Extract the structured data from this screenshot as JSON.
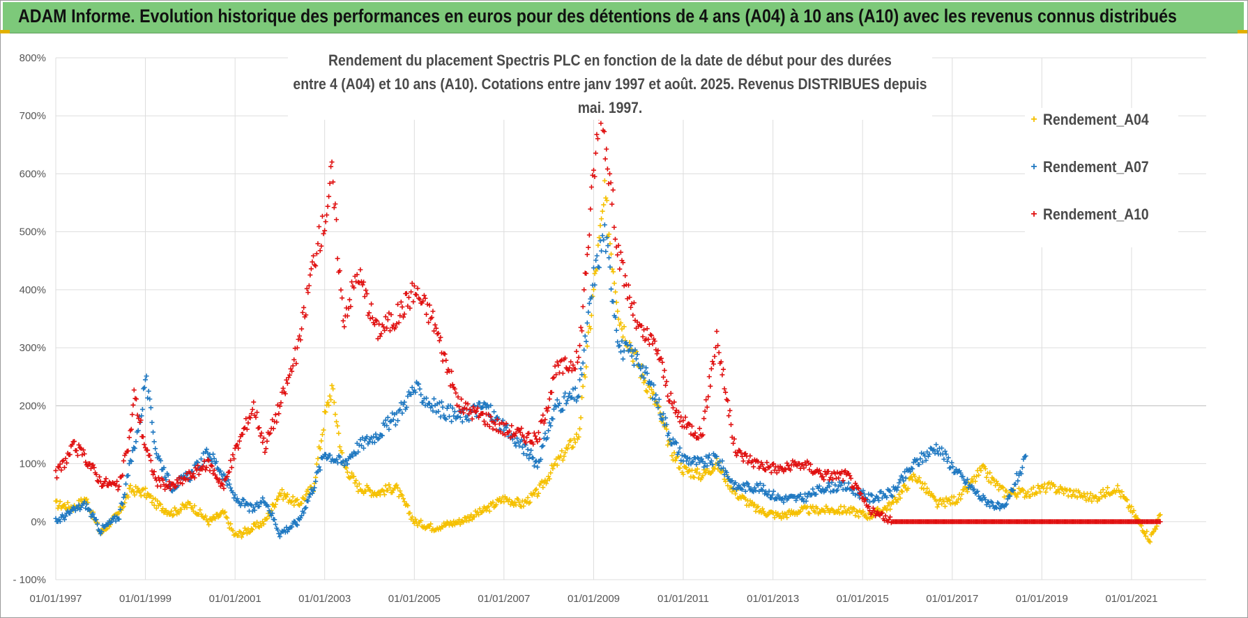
{
  "header": {
    "title": "ADAM Informe. Evolution historique des performances en euros pour des détentions de 4 ans (A04) à 10 ans (A10) avec les revenus connus distribués"
  },
  "chart_data": {
    "type": "scatter",
    "title_line1": "Rendement du placement Spectris PLC en fonction de la date de début pour des durées",
    "title_line2": "entre 4 (A04) et 10 ans (A10). Cotations entre janv 1997 et août. 2025. Revenus DISTRIBUES depuis mai. 1997.",
    "xlabel": "",
    "ylabel": "",
    "x_range": [
      "1997-01-01",
      "2022-01-01"
    ],
    "ylim": [
      -100,
      800
    ],
    "y_ticks": [
      -100,
      0,
      100,
      200,
      300,
      400,
      500,
      600,
      700,
      800
    ],
    "y_tick_labels": [
      "- 100%",
      "0%",
      "100%",
      "200%",
      "300%",
      "400%",
      "500%",
      "600%",
      "700%",
      "800%"
    ],
    "x_tick_labels": [
      "01/01/1997",
      "01/01/1999",
      "01/01/2001",
      "01/01/2003",
      "01/01/2005",
      "01/01/2007",
      "01/01/2009",
      "01/01/2011",
      "01/01/2013",
      "01/01/2015",
      "01/01/2017",
      "01/01/2019",
      "01/01/2021"
    ],
    "grid": true,
    "legend_position": "top-right",
    "marker": "+",
    "series": [
      {
        "name": "Rendement_A04",
        "color": "#f5c000",
        "points": [
          [
            "1997-01-01",
            30
          ],
          [
            "1997-06-01",
            25
          ],
          [
            "1997-09-01",
            40
          ],
          [
            "1998-01-01",
            -20
          ],
          [
            "1998-06-01",
            15
          ],
          [
            "1998-09-01",
            55
          ],
          [
            "1999-01-01",
            50
          ],
          [
            "1999-04-01",
            30
          ],
          [
            "1999-08-01",
            15
          ],
          [
            "2000-01-01",
            30
          ],
          [
            "2000-06-01",
            0
          ],
          [
            "2000-10-01",
            15
          ],
          [
            "2001-01-01",
            -25
          ],
          [
            "2001-06-01",
            -10
          ],
          [
            "2001-09-01",
            0
          ],
          [
            "2002-01-01",
            50
          ],
          [
            "2002-06-01",
            30
          ],
          [
            "2002-10-01",
            60
          ],
          [
            "2003-01-01",
            180
          ],
          [
            "2003-03-01",
            230
          ],
          [
            "2003-06-01",
            100
          ],
          [
            "2003-10-01",
            60
          ],
          [
            "2004-03-01",
            50
          ],
          [
            "2004-08-01",
            60
          ],
          [
            "2005-01-01",
            0
          ],
          [
            "2005-06-01",
            -10
          ],
          [
            "2006-01-01",
            0
          ],
          [
            "2006-08-01",
            20
          ],
          [
            "2007-01-01",
            40
          ],
          [
            "2007-06-01",
            30
          ],
          [
            "2007-10-01",
            50
          ],
          [
            "2008-03-01",
            100
          ],
          [
            "2008-09-01",
            150
          ],
          [
            "2009-01-01",
            400
          ],
          [
            "2009-04-01",
            560
          ],
          [
            "2009-08-01",
            350
          ],
          [
            "2010-01-01",
            270
          ],
          [
            "2010-06-01",
            200
          ],
          [
            "2010-10-01",
            120
          ],
          [
            "2011-01-01",
            90
          ],
          [
            "2011-06-01",
            80
          ],
          [
            "2011-10-01",
            100
          ],
          [
            "2012-03-01",
            50
          ],
          [
            "2012-09-01",
            20
          ],
          [
            "2013-03-01",
            10
          ],
          [
            "2013-09-01",
            20
          ],
          [
            "2014-03-01",
            20
          ],
          [
            "2014-09-01",
            20
          ],
          [
            "2015-03-01",
            10
          ],
          [
            "2015-09-01",
            30
          ],
          [
            "2016-03-01",
            80
          ],
          [
            "2016-09-01",
            30
          ],
          [
            "2017-03-01",
            40
          ],
          [
            "2017-09-01",
            90
          ],
          [
            "2018-03-01",
            50
          ],
          [
            "2018-09-01",
            50
          ],
          [
            "2019-03-01",
            60
          ],
          [
            "2019-09-01",
            50
          ],
          [
            "2020-03-01",
            40
          ],
          [
            "2020-09-01",
            60
          ],
          [
            "2021-01-01",
            20
          ],
          [
            "2021-06-01",
            -30
          ],
          [
            "2021-09-01",
            15
          ]
        ]
      },
      {
        "name": "Rendement_A07",
        "color": "#1f78c1",
        "points": [
          [
            "1997-01-01",
            0
          ],
          [
            "1997-06-01",
            20
          ],
          [
            "1997-09-01",
            30
          ],
          [
            "1998-01-01",
            -15
          ],
          [
            "1998-06-01",
            10
          ],
          [
            "1998-09-01",
            100
          ],
          [
            "1998-12-01",
            190
          ],
          [
            "1999-01-01",
            250
          ],
          [
            "1999-04-01",
            120
          ],
          [
            "1999-08-01",
            60
          ],
          [
            "2000-01-01",
            80
          ],
          [
            "2000-06-01",
            120
          ],
          [
            "2000-10-01",
            80
          ],
          [
            "2001-01-01",
            40
          ],
          [
            "2001-06-01",
            20
          ],
          [
            "2001-09-01",
            40
          ],
          [
            "2002-01-01",
            -20
          ],
          [
            "2002-06-01",
            0
          ],
          [
            "2002-10-01",
            60
          ],
          [
            "2003-01-01",
            120
          ],
          [
            "2003-06-01",
            100
          ],
          [
            "2003-10-01",
            130
          ],
          [
            "2004-03-01",
            150
          ],
          [
            "2004-08-01",
            180
          ],
          [
            "2005-01-01",
            230
          ],
          [
            "2005-06-01",
            200
          ],
          [
            "2006-01-01",
            180
          ],
          [
            "2006-08-01",
            200
          ],
          [
            "2007-01-01",
            160
          ],
          [
            "2007-06-01",
            130
          ],
          [
            "2007-10-01",
            100
          ],
          [
            "2008-03-01",
            200
          ],
          [
            "2008-09-01",
            220
          ],
          [
            "2009-01-01",
            420
          ],
          [
            "2009-04-01",
            500
          ],
          [
            "2009-08-01",
            300
          ],
          [
            "2010-01-01",
            280
          ],
          [
            "2010-06-01",
            210
          ],
          [
            "2010-10-01",
            140
          ],
          [
            "2011-01-01",
            110
          ],
          [
            "2011-06-01",
            100
          ],
          [
            "2011-10-01",
            110
          ],
          [
            "2012-03-01",
            60
          ],
          [
            "2012-09-01",
            60
          ],
          [
            "2013-03-01",
            40
          ],
          [
            "2013-09-01",
            40
          ],
          [
            "2014-03-01",
            60
          ],
          [
            "2014-09-01",
            60
          ],
          [
            "2015-03-01",
            40
          ],
          [
            "2015-09-01",
            50
          ],
          [
            "2016-03-01",
            100
          ],
          [
            "2016-09-01",
            130
          ],
          [
            "2017-03-01",
            80
          ],
          [
            "2017-09-01",
            40
          ],
          [
            "2018-03-01",
            20
          ],
          [
            "2018-06-01",
            70
          ],
          [
            "2018-09-01",
            110
          ]
        ]
      },
      {
        "name": "Rendement_A10",
        "color": "#e01010",
        "points": [
          [
            "1997-01-01",
            80
          ],
          [
            "1997-06-01",
            130
          ],
          [
            "1997-09-01",
            110
          ],
          [
            "1998-01-01",
            70
          ],
          [
            "1998-06-01",
            60
          ],
          [
            "1998-09-01",
            150
          ],
          [
            "1998-10-01",
            220
          ],
          [
            "1999-01-01",
            130
          ],
          [
            "1999-04-01",
            70
          ],
          [
            "1999-08-01",
            60
          ],
          [
            "2000-01-01",
            80
          ],
          [
            "2000-06-01",
            100
          ],
          [
            "2000-10-01",
            60
          ],
          [
            "2001-01-01",
            120
          ],
          [
            "2001-06-01",
            200
          ],
          [
            "2001-09-01",
            130
          ],
          [
            "2002-01-01",
            200
          ],
          [
            "2002-06-01",
            300
          ],
          [
            "2002-10-01",
            450
          ],
          [
            "2003-01-01",
            520
          ],
          [
            "2003-03-01",
            600
          ],
          [
            "2003-06-01",
            350
          ],
          [
            "2003-10-01",
            430
          ],
          [
            "2004-03-01",
            330
          ],
          [
            "2004-08-01",
            350
          ],
          [
            "2005-01-01",
            400
          ],
          [
            "2005-06-01",
            350
          ],
          [
            "2006-01-01",
            200
          ],
          [
            "2006-08-01",
            180
          ],
          [
            "2007-01-01",
            160
          ],
          [
            "2007-06-01",
            150
          ],
          [
            "2007-10-01",
            140
          ],
          [
            "2008-03-01",
            260
          ],
          [
            "2008-09-01",
            280
          ],
          [
            "2009-01-01",
            600
          ],
          [
            "2009-03-01",
            720
          ],
          [
            "2009-08-01",
            450
          ],
          [
            "2010-01-01",
            330
          ],
          [
            "2010-06-01",
            300
          ],
          [
            "2010-10-01",
            200
          ],
          [
            "2011-01-01",
            170
          ],
          [
            "2011-06-01",
            150
          ],
          [
            "2011-10-01",
            320
          ],
          [
            "2012-03-01",
            120
          ],
          [
            "2012-09-01",
            100
          ],
          [
            "2013-03-01",
            90
          ],
          [
            "2013-09-01",
            100
          ],
          [
            "2014-03-01",
            80
          ],
          [
            "2014-09-01",
            80
          ],
          [
            "2015-03-01",
            20
          ],
          [
            "2015-09-01",
            0
          ],
          [
            "2016-03-01",
            0
          ],
          [
            "2017-03-01",
            0
          ],
          [
            "2018-03-01",
            0
          ],
          [
            "2019-03-01",
            0
          ],
          [
            "2020-03-01",
            0
          ],
          [
            "2021-03-01",
            0
          ],
          [
            "2021-09-01",
            0
          ]
        ]
      }
    ]
  }
}
